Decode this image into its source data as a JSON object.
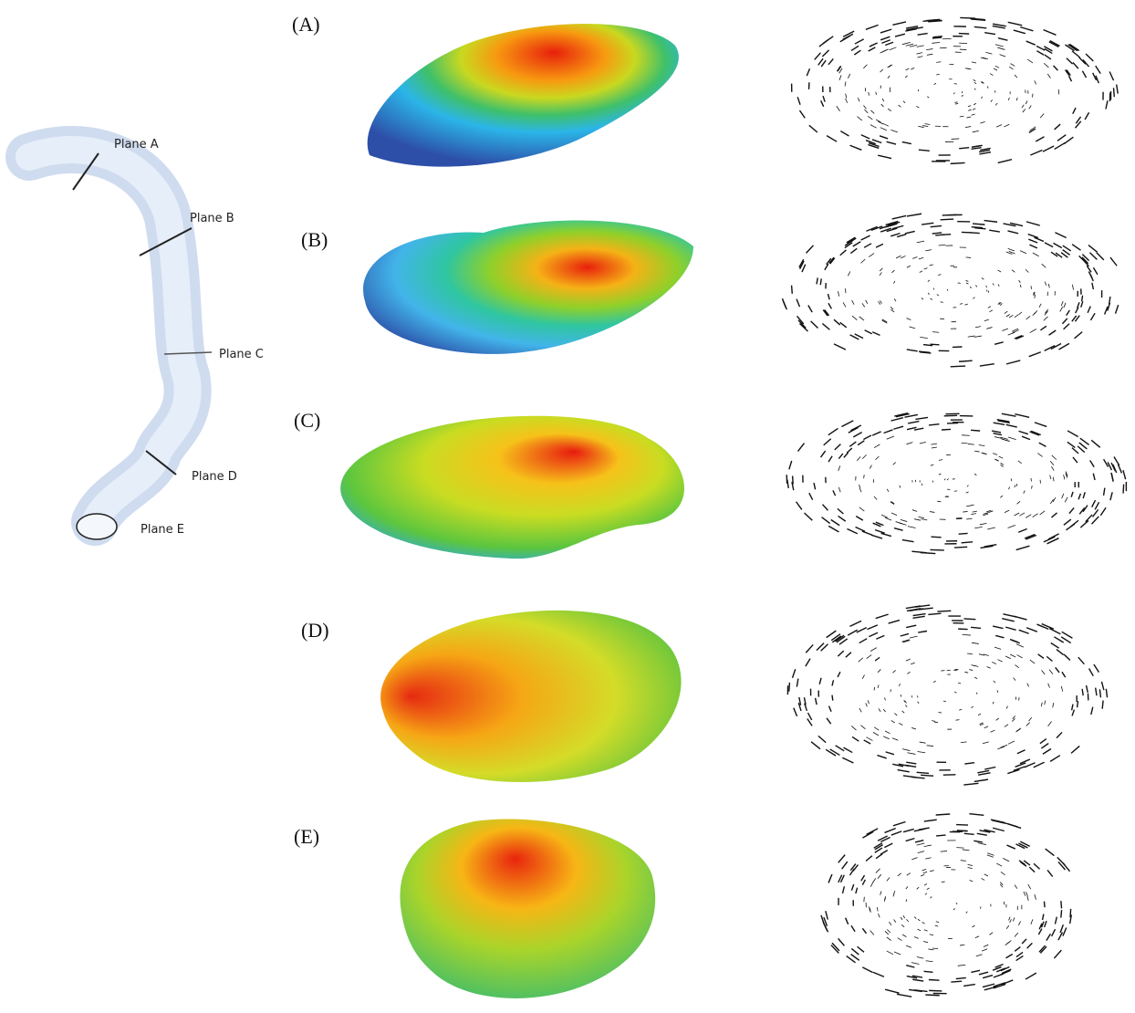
{
  "planes": [
    "Plane A",
    "Plane B",
    "Plane C",
    "Plane D",
    "Plane E"
  ],
  "panels": [
    "(A)",
    "(B)",
    "(C)",
    "(D)",
    "(E)"
  ]
}
